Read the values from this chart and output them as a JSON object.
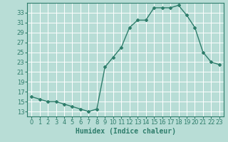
{
  "x": [
    0,
    1,
    2,
    3,
    4,
    5,
    6,
    7,
    8,
    9,
    10,
    11,
    12,
    13,
    14,
    15,
    16,
    17,
    18,
    19,
    20,
    21,
    22,
    23
  ],
  "y": [
    16,
    15.5,
    15,
    15,
    14.5,
    14,
    13.5,
    13,
    13.5,
    22,
    24,
    26,
    30,
    31.5,
    31.5,
    34,
    34,
    34,
    34.5,
    32.5,
    30,
    25,
    23,
    22.5
  ],
  "line_color": "#2e7d6b",
  "marker": "D",
  "marker_size": 2,
  "bg_color": "#b8ddd6",
  "grid_color": "#ffffff",
  "xlabel": "Humidex (Indice chaleur)",
  "xlim": [
    -0.5,
    23.5
  ],
  "ylim": [
    12,
    35
  ],
  "yticks": [
    13,
    15,
    17,
    19,
    21,
    23,
    25,
    27,
    29,
    31,
    33
  ],
  "xtick_labels": [
    "0",
    "1",
    "2",
    "3",
    "4",
    "5",
    "6",
    "7",
    "8",
    "9",
    "10",
    "11",
    "12",
    "13",
    "14",
    "15",
    "16",
    "17",
    "18",
    "19",
    "20",
    "21",
    "22",
    "23"
  ],
  "xlabel_fontsize": 7,
  "tick_fontsize": 6,
  "line_width": 1.0
}
